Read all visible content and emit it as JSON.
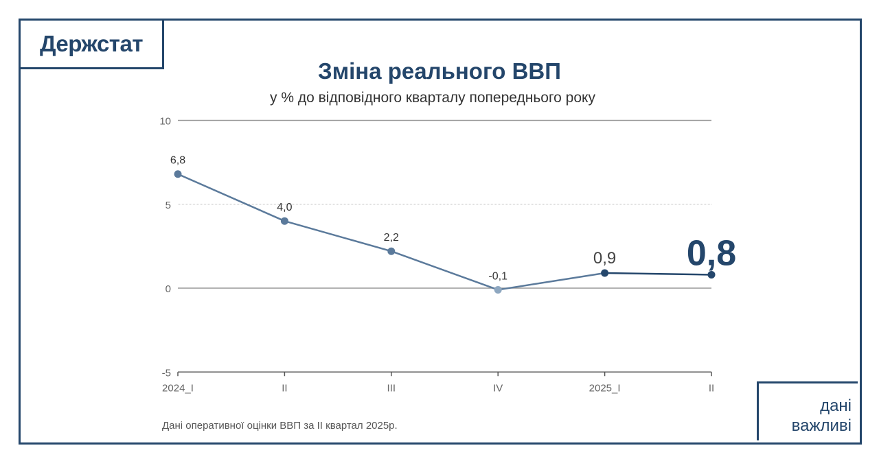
{
  "brand": {
    "logo": "Держстат",
    "tag_line1": "дані",
    "tag_line2": "важливі"
  },
  "colors": {
    "frame": "#24466b",
    "line": "#5b7a9b",
    "line_latest": "#24466b",
    "point_low": "#8ea7c0",
    "grid": "#999999"
  },
  "chart_data": {
    "type": "line",
    "title": "Зміна реального ВВП",
    "subtitle": "у % до відповідного кварталу попереднього року",
    "categories": [
      "2024_I",
      "II",
      "III",
      "IV",
      "2025_I",
      "II"
    ],
    "values": [
      6.8,
      4.0,
      2.2,
      -0.1,
      0.9,
      0.8
    ],
    "data_labels": [
      "6,8",
      "4,0",
      "2,2",
      "-0,1",
      "0,9",
      "0,8"
    ],
    "ylim": [
      -5,
      10
    ],
    "yticks": [
      10,
      5,
      0,
      -5
    ],
    "ytick_labels": [
      "10",
      "5",
      "0",
      "-5"
    ],
    "grid": true,
    "xlabel": "",
    "ylabel": ""
  },
  "footnote": "Дані оперативної оцінки ВВП за II квартал 2025р."
}
